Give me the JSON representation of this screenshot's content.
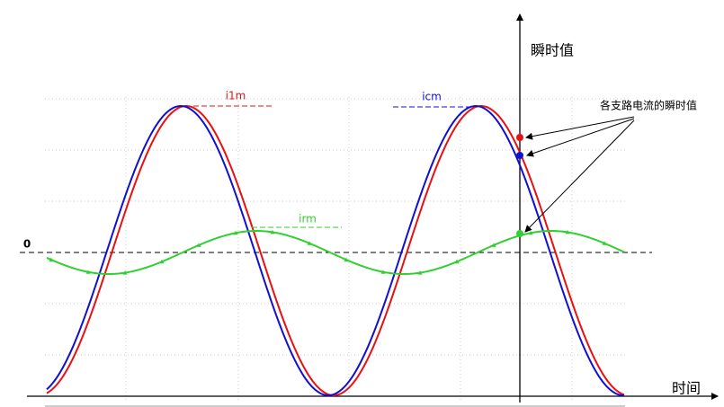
{
  "axes": {
    "y_label": "瞬时值",
    "x_label": "时间",
    "zero_label": "0"
  },
  "curves": {
    "i1m": "i1m",
    "icm": "icm",
    "irm": "irm"
  },
  "annotation": "各支路电流的瞬时值"
}
